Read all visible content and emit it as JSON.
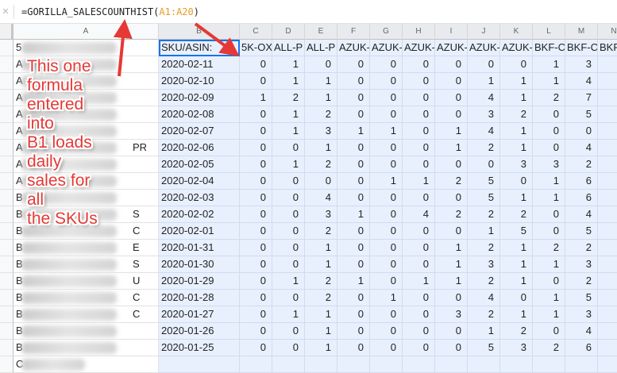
{
  "formula_bar": {
    "icon": "fx-icon",
    "prefix": "=GORILLA_SALESCOUNTHIST(",
    "range": "A1:A20",
    "suffix": ")"
  },
  "columns": [
    "A",
    "B",
    "C",
    "D",
    "E",
    "F",
    "G",
    "H",
    "I",
    "J",
    "K",
    "L",
    "M",
    "N"
  ],
  "colA": [
    [
      "5",
      ""
    ],
    [
      "A",
      ""
    ],
    [
      "A",
      ""
    ],
    [
      "A",
      ""
    ],
    [
      "A",
      ""
    ],
    [
      "A",
      ""
    ],
    [
      "A",
      "PR"
    ],
    [
      "A",
      ""
    ],
    [
      "A",
      ""
    ],
    [
      "B",
      ""
    ],
    [
      "B",
      "S"
    ],
    [
      "B",
      "C"
    ],
    [
      "B",
      "E"
    ],
    [
      "B",
      "S"
    ],
    [
      "B",
      "U"
    ],
    [
      "B",
      "C"
    ],
    [
      "B",
      "C"
    ],
    [
      "B",
      ""
    ],
    [
      "B",
      ""
    ],
    [
      "C",
      ""
    ]
  ],
  "header_row": [
    "SKU/ASIN:",
    "5K-OX",
    "ALL-P",
    "ALL-P",
    "AZUK-",
    "AZUK-",
    "AZUK-",
    "AZUK-",
    "AZUK-",
    "AZUK-",
    "BKF-C",
    "BKF-C",
    "BKF"
  ],
  "rows": [
    {
      "date": "2020-02-11",
      "v": [
        0,
        1,
        0,
        0,
        0,
        0,
        0,
        0,
        0,
        1,
        3
      ]
    },
    {
      "date": "2020-02-10",
      "v": [
        0,
        1,
        1,
        0,
        0,
        0,
        0,
        1,
        1,
        1,
        4
      ]
    },
    {
      "date": "2020-02-09",
      "v": [
        1,
        2,
        1,
        0,
        0,
        0,
        0,
        4,
        1,
        2,
        7
      ]
    },
    {
      "date": "2020-02-08",
      "v": [
        0,
        1,
        2,
        0,
        0,
        0,
        0,
        3,
        2,
        0,
        5
      ]
    },
    {
      "date": "2020-02-07",
      "v": [
        0,
        1,
        3,
        1,
        1,
        0,
        1,
        4,
        1,
        0,
        0
      ]
    },
    {
      "date": "2020-02-06",
      "v": [
        0,
        0,
        1,
        0,
        0,
        0,
        1,
        2,
        1,
        0,
        4
      ]
    },
    {
      "date": "2020-02-05",
      "v": [
        0,
        1,
        2,
        0,
        0,
        0,
        0,
        0,
        3,
        3,
        2
      ]
    },
    {
      "date": "2020-02-04",
      "v": [
        0,
        0,
        0,
        0,
        1,
        1,
        2,
        5,
        0,
        1,
        6
      ]
    },
    {
      "date": "2020-02-03",
      "v": [
        0,
        0,
        4,
        0,
        0,
        0,
        0,
        5,
        1,
        1,
        6
      ]
    },
    {
      "date": "2020-02-02",
      "v": [
        0,
        0,
        3,
        1,
        0,
        4,
        2,
        2,
        2,
        0,
        4
      ]
    },
    {
      "date": "2020-02-01",
      "v": [
        0,
        0,
        2,
        0,
        0,
        0,
        0,
        1,
        5,
        0,
        5
      ]
    },
    {
      "date": "2020-01-31",
      "v": [
        0,
        0,
        1,
        0,
        0,
        0,
        1,
        2,
        1,
        2,
        2
      ]
    },
    {
      "date": "2020-01-30",
      "v": [
        0,
        0,
        1,
        0,
        0,
        0,
        1,
        3,
        1,
        1,
        3
      ]
    },
    {
      "date": "2020-01-29",
      "v": [
        0,
        1,
        2,
        1,
        0,
        1,
        1,
        2,
        1,
        0,
        2
      ]
    },
    {
      "date": "2020-01-28",
      "v": [
        0,
        0,
        2,
        0,
        1,
        0,
        0,
        4,
        0,
        1,
        5
      ]
    },
    {
      "date": "2020-01-27",
      "v": [
        0,
        1,
        1,
        0,
        0,
        0,
        3,
        2,
        1,
        1,
        3
      ]
    },
    {
      "date": "2020-01-26",
      "v": [
        0,
        0,
        1,
        0,
        0,
        0,
        0,
        1,
        2,
        0,
        4
      ]
    },
    {
      "date": "2020-01-25",
      "v": [
        0,
        0,
        1,
        0,
        0,
        0,
        0,
        5,
        3,
        2,
        6
      ]
    }
  ],
  "annotation": "This one\nformula\nentered into\nB1 loads daily\nsales for all\nthe SKUs",
  "colors": {
    "annotation": "#e53935",
    "selection": "#1a73e8",
    "range_highlight": "#e8f0fe",
    "formula_range": "#e69a26"
  }
}
